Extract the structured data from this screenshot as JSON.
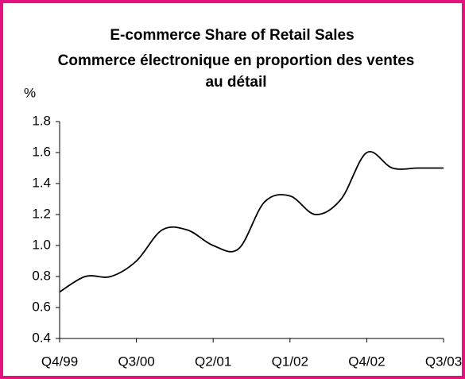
{
  "chart_data": {
    "type": "line",
    "title": [
      "E-commerce Share of Retail Sales",
      "Commerce électronique en proportion des ventes",
      "au détail"
    ],
    "y_label": "%",
    "categories": [
      "Q4/99",
      null,
      null,
      "Q3/00",
      null,
      null,
      "Q2/01",
      null,
      null,
      "Q1/02",
      null,
      null,
      "Q4/02",
      null,
      null,
      "Q3/03"
    ],
    "values": [
      0.7,
      0.8,
      0.8,
      0.9,
      1.1,
      1.1,
      1.0,
      0.98,
      1.28,
      1.32,
      1.2,
      1.3,
      1.6,
      1.5,
      1.5,
      1.5
    ],
    "color": "#000000",
    "ylim": [
      0.4,
      1.8
    ],
    "yticks": [
      0.4,
      0.6,
      0.8,
      {
        "value": 1,
        "label": "1.0"
      },
      1.2,
      1.4,
      1.6,
      1.8
    ]
  }
}
